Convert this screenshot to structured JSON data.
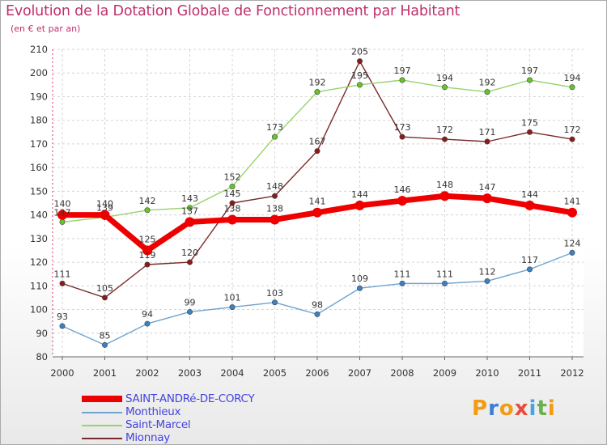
{
  "title": "Evolution de la Dotation Globale de Fonctionnement par Habitant",
  "subtitle": "(en € et par an)",
  "logo": {
    "text": "Proxiti",
    "letters": [
      "P",
      "r",
      "o",
      "x",
      "i",
      "t",
      "i"
    ],
    "colors": [
      "#f39c12",
      "#3a7fd5",
      "#f39c12",
      "#e74c3c",
      "#4aa3df",
      "#6ab04c",
      "#f39c12"
    ]
  },
  "chart_data": {
    "type": "line",
    "title": "Evolution de la Dotation Globale de Fonctionnement par Habitant",
    "subtitle": "(en € et par an)",
    "xlabel": "",
    "ylabel": "",
    "ylim": [
      80,
      210
    ],
    "yticks": [
      80,
      90,
      100,
      110,
      120,
      130,
      140,
      150,
      160,
      170,
      180,
      190,
      200,
      210
    ],
    "categories": [
      "2000",
      "2001",
      "2002",
      "2003",
      "2004",
      "2005",
      "2006",
      "2007",
      "2008",
      "2009",
      "2010",
      "2011",
      "2012"
    ],
    "grid": true,
    "legend_position": "bottom-left",
    "series": [
      {
        "name": "Mionnay",
        "color": "#7a2a2a",
        "point_color": "#8b1a1a",
        "width": "thin",
        "values": [
          111,
          105,
          119,
          120,
          145,
          148,
          167,
          205,
          173,
          172,
          171,
          175,
          172
        ]
      },
      {
        "name": "Saint-Marcel",
        "color": "#99d36a",
        "point_color": "#66c52a",
        "width": "thin",
        "values": [
          137,
          139,
          142,
          143,
          152,
          173,
          192,
          195,
          197,
          194,
          192,
          197,
          194
        ]
      },
      {
        "name": "Monthieux",
        "color": "#6fa3cf",
        "point_color": "#3b82c4",
        "width": "thin",
        "values": [
          93,
          85,
          94,
          99,
          101,
          103,
          98,
          109,
          111,
          111,
          112,
          117,
          124
        ]
      },
      {
        "name": "SAINT-ANDRé-DE-CORCY",
        "color": "#ee0000",
        "point_color": "#ee0000",
        "width": "thick",
        "values": [
          140,
          140,
          125,
          137,
          138,
          138,
          141,
          144,
          146,
          148,
          147,
          144,
          141
        ]
      }
    ],
    "legend": [
      {
        "name": "SAINT-ANDRé-DE-CORCY",
        "color": "#ee0000",
        "text_color": "#4444dd",
        "width": "thick"
      },
      {
        "name": "Monthieux",
        "color": "#6fa3cf",
        "text_color": "#4444dd",
        "width": "thin"
      },
      {
        "name": "Saint-Marcel",
        "color": "#99d36a",
        "text_color": "#4444dd",
        "width": "thin"
      },
      {
        "name": "Mionnay",
        "color": "#7a2a2a",
        "text_color": "#4444dd",
        "width": "thin"
      }
    ]
  }
}
